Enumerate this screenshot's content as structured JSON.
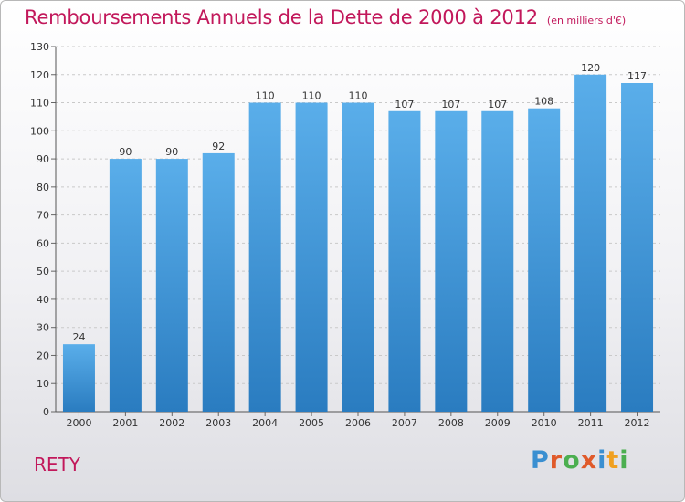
{
  "chart_data": {
    "type": "bar",
    "title": "Remboursements Annuels de la Dette de 2000 à 2012",
    "unit": "(en milliers d'€)",
    "categories": [
      "2000",
      "2001",
      "2002",
      "2003",
      "2004",
      "2005",
      "2006",
      "2007",
      "2008",
      "2009",
      "2010",
      "2011",
      "2012"
    ],
    "values": [
      24,
      90,
      90,
      92,
      110,
      110,
      110,
      107,
      107,
      107,
      108,
      120,
      117
    ],
    "ylim": [
      0,
      130
    ],
    "yticks": [
      0,
      10,
      20,
      30,
      40,
      50,
      60,
      70,
      80,
      90,
      100,
      110,
      120,
      130
    ],
    "grid": true,
    "bar_color": "#3f94d6"
  },
  "footer": {
    "commune": "RETY",
    "logo_letters": [
      "P",
      "r",
      "o",
      "x",
      "i",
      "t",
      "i"
    ],
    "logo_colors": [
      "#3a8fd1",
      "#e05a2a",
      "#4caf50",
      "#e05a2a",
      "#3a8fd1",
      "#f0a020",
      "#4caf50"
    ]
  }
}
